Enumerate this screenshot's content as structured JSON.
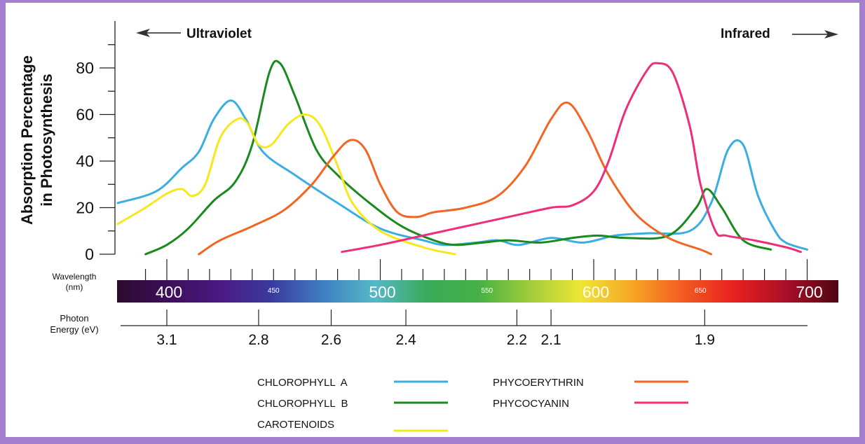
{
  "chart_data": {
    "type": "line",
    "title": "",
    "xlabel": "Wavelength (nm)",
    "ylabel": "Absorption Percentage in Photosynthesis",
    "ylabel_lines": [
      "Absorption Percentage",
      "in Photosynthesis"
    ],
    "xlim": [
      377,
      702
    ],
    "ylim": [
      0,
      80
    ],
    "y_ticks_major": [
      0,
      20,
      40,
      60,
      80
    ],
    "y_ticks_minor": [
      10,
      30,
      50,
      70,
      90
    ],
    "grid": false,
    "direction_labels": {
      "left": "Ultraviolet",
      "right": "Infrared"
    },
    "wavelength_axis": {
      "label_lines": [
        "Wavelength",
        "(nm)"
      ],
      "major_ticks": [
        400,
        500,
        600,
        700
      ],
      "minor_tick_step": 10,
      "minor_tick_start": 390,
      "band_labels": [
        {
          "value": 400,
          "text": "400",
          "size": "large"
        },
        {
          "value": 450,
          "text": "450",
          "size": "small"
        },
        {
          "value": 500,
          "text": "500",
          "size": "large"
        },
        {
          "value": 550,
          "text": "550",
          "size": "small"
        },
        {
          "value": 600,
          "text": "600",
          "size": "large"
        },
        {
          "value": 650,
          "text": "650",
          "size": "small"
        },
        {
          "value": 700,
          "text": "700",
          "size": "large"
        }
      ],
      "spectrum_colors": [
        "#2b0a2e",
        "#3d0f5a",
        "#4a1a82",
        "#3a3a9e",
        "#3f7fc2",
        "#56b8c8",
        "#3aaa5a",
        "#44b046",
        "#9fcc3a",
        "#eee636",
        "#f7a623",
        "#f25a22",
        "#e8201f",
        "#a80f28",
        "#4f0612"
      ]
    },
    "energy_axis": {
      "label_lines": [
        "Photon",
        "Energy (eV)"
      ],
      "ticks": [
        {
          "text": "3.1",
          "nm": 400
        },
        {
          "text": "2.8",
          "nm": 443
        },
        {
          "text": "2.6",
          "nm": 477
        },
        {
          "text": "2.4",
          "nm": 512
        },
        {
          "text": "2.2",
          "nm": 564
        },
        {
          "text": "2.1",
          "nm": 580
        },
        {
          "text": "1.9",
          "nm": 652
        }
      ]
    },
    "series": [
      {
        "name": "CHLOROPHYLL A",
        "color": "#3aaee0",
        "points": [
          [
            377,
            22
          ],
          [
            395,
            27
          ],
          [
            407,
            37
          ],
          [
            415,
            44
          ],
          [
            422,
            58
          ],
          [
            430,
            66
          ],
          [
            437,
            58
          ],
          [
            445,
            44
          ],
          [
            460,
            34
          ],
          [
            480,
            22
          ],
          [
            500,
            11
          ],
          [
            520,
            6
          ],
          [
            530,
            4
          ],
          [
            545,
            5
          ],
          [
            555,
            6
          ],
          [
            565,
            4
          ],
          [
            580,
            7
          ],
          [
            595,
            5
          ],
          [
            610,
            8
          ],
          [
            625,
            9
          ],
          [
            645,
            10
          ],
          [
            655,
            22
          ],
          [
            663,
            45
          ],
          [
            670,
            47
          ],
          [
            677,
            25
          ],
          [
            685,
            10
          ],
          [
            690,
            5
          ],
          [
            700,
            2
          ]
        ]
      },
      {
        "name": "CHLOROPHYLL B",
        "color": "#1a8a1e",
        "points": [
          [
            390,
            0
          ],
          [
            400,
            4
          ],
          [
            410,
            11
          ],
          [
            422,
            23
          ],
          [
            432,
            31
          ],
          [
            440,
            47
          ],
          [
            448,
            78
          ],
          [
            453,
            82
          ],
          [
            460,
            68
          ],
          [
            470,
            45
          ],
          [
            480,
            34
          ],
          [
            495,
            22
          ],
          [
            510,
            12
          ],
          [
            525,
            6
          ],
          [
            535,
            4
          ],
          [
            548,
            5
          ],
          [
            560,
            6
          ],
          [
            575,
            5
          ],
          [
            590,
            7
          ],
          [
            602,
            8
          ],
          [
            615,
            7
          ],
          [
            635,
            8
          ],
          [
            648,
            20
          ],
          [
            653,
            28
          ],
          [
            660,
            20
          ],
          [
            670,
            6
          ],
          [
            683,
            2
          ]
        ]
      },
      {
        "name": "CAROTENOIDS",
        "color": "#f5e81d",
        "points": [
          [
            377,
            13
          ],
          [
            390,
            20
          ],
          [
            400,
            26
          ],
          [
            407,
            28
          ],
          [
            412,
            25
          ],
          [
            418,
            30
          ],
          [
            425,
            50
          ],
          [
            433,
            58
          ],
          [
            438,
            56
          ],
          [
            443,
            47
          ],
          [
            449,
            47
          ],
          [
            457,
            56
          ],
          [
            465,
            60
          ],
          [
            472,
            55
          ],
          [
            480,
            38
          ],
          [
            487,
            22
          ],
          [
            500,
            10
          ],
          [
            520,
            3
          ],
          [
            535,
            0
          ]
        ]
      },
      {
        "name": "PHYCOERYTHRIN",
        "color": "#f26522",
        "points": [
          [
            415,
            0
          ],
          [
            425,
            6
          ],
          [
            440,
            12
          ],
          [
            455,
            19
          ],
          [
            468,
            30
          ],
          [
            478,
            42
          ],
          [
            486,
            49
          ],
          [
            493,
            45
          ],
          [
            500,
            30
          ],
          [
            508,
            18
          ],
          [
            517,
            16
          ],
          [
            525,
            18
          ],
          [
            540,
            20
          ],
          [
            555,
            25
          ],
          [
            568,
            38
          ],
          [
            580,
            58
          ],
          [
            588,
            65
          ],
          [
            597,
            53
          ],
          [
            607,
            34
          ],
          [
            620,
            17
          ],
          [
            635,
            7
          ],
          [
            650,
            2
          ],
          [
            655,
            0
          ]
        ]
      },
      {
        "name": "PHYCOCYANIN",
        "color": "#ef2e7a",
        "points": [
          [
            482,
            1
          ],
          [
            500,
            4
          ],
          [
            520,
            8
          ],
          [
            540,
            12
          ],
          [
            560,
            16
          ],
          [
            580,
            20
          ],
          [
            590,
            21
          ],
          [
            600,
            27
          ],
          [
            607,
            40
          ],
          [
            615,
            62
          ],
          [
            625,
            79
          ],
          [
            630,
            82
          ],
          [
            637,
            78
          ],
          [
            645,
            55
          ],
          [
            650,
            30
          ],
          [
            657,
            10
          ],
          [
            662,
            8
          ],
          [
            675,
            6
          ],
          [
            690,
            3
          ],
          [
            697,
            1
          ]
        ]
      }
    ],
    "legend": {
      "placement": "bottom",
      "columns": [
        [
          "CHLOROPHYLL  A",
          "CHLOROPHYLL  B",
          "CAROTENOIDS"
        ],
        [
          "PHYCOERYTHRIN",
          "PHYCOCYANIN"
        ]
      ]
    }
  },
  "frame_color": "#a57fcf"
}
